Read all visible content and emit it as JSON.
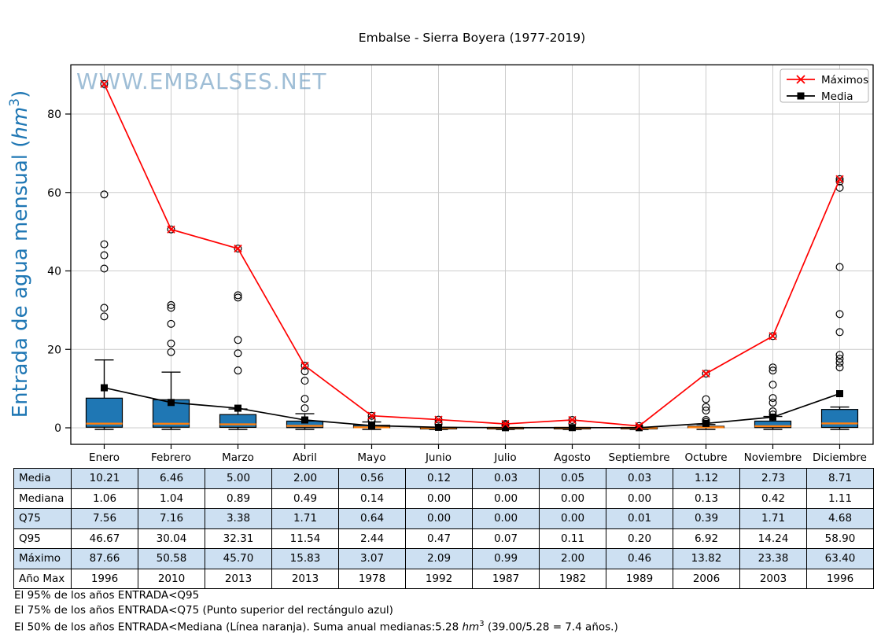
{
  "title": "Embalse - Sierra Boyera (1977-2019)",
  "watermark": "WWW.EMBALSES.NET",
  "legend": {
    "maximos": "Máximos",
    "media": "Media"
  },
  "ylabel": {
    "pre": "Entrada de agua mensual (",
    "unit": "hm",
    "sup": "3",
    "post": ")"
  },
  "footer": {
    "line1": "El 95% de los años ENTRADA<Q95",
    "line2": "El 75% de los años ENTRADA<Q75 (Punto superior del rectángulo azul)",
    "line3_pre": "El 50% de los años ENTRADA<Mediana (Línea naranja). Suma anual medianas:5.28 ",
    "line3_unit": "hm",
    "line3_sup": "3",
    "line3_post": " (39.00/5.28 = 7.4 años.)"
  },
  "table": {
    "rows": [
      {
        "label": "Media",
        "values": [
          "10.21",
          "6.46",
          "5.00",
          "2.00",
          "0.56",
          "0.12",
          "0.03",
          "0.05",
          "0.03",
          "1.12",
          "2.73",
          "8.71"
        ]
      },
      {
        "label": "Mediana",
        "values": [
          "1.06",
          "1.04",
          "0.89",
          "0.49",
          "0.14",
          "0.00",
          "0.00",
          "0.00",
          "0.00",
          "0.13",
          "0.42",
          "1.11"
        ]
      },
      {
        "label": "Q75",
        "values": [
          "7.56",
          "7.16",
          "3.38",
          "1.71",
          "0.64",
          "0.00",
          "0.00",
          "0.00",
          "0.01",
          "0.39",
          "1.71",
          "4.68"
        ]
      },
      {
        "label": "Q95",
        "values": [
          "46.67",
          "30.04",
          "32.31",
          "11.54",
          "2.44",
          "0.47",
          "0.07",
          "0.11",
          "0.20",
          "6.92",
          "14.24",
          "58.90"
        ]
      },
      {
        "label": "Máximo",
        "values": [
          "87.66",
          "50.58",
          "45.70",
          "15.83",
          "3.07",
          "2.09",
          "0.99",
          "2.00",
          "0.46",
          "13.82",
          "23.38",
          "63.40"
        ]
      },
      {
        "label": "Año Max",
        "values": [
          "1996",
          "2010",
          "2013",
          "2013",
          "1978",
          "1992",
          "1987",
          "1982",
          "1989",
          "2006",
          "2003",
          "1996"
        ]
      }
    ]
  },
  "chart_data": {
    "type": "boxplot+line",
    "categories": [
      "Enero",
      "Febrero",
      "Marzo",
      "Abril",
      "Mayo",
      "Junio",
      "Julio",
      "Agosto",
      "Septiembre",
      "Octubre",
      "Noviembre",
      "Diciembre"
    ],
    "yticks": [
      0,
      20,
      40,
      60,
      80
    ],
    "ylim": [
      -4.2,
      92.5
    ],
    "grid": true,
    "legend_position": "upper right",
    "series": [
      {
        "name": "Máximos",
        "color": "#ff0000",
        "marker": "x",
        "values": [
          87.66,
          50.58,
          45.7,
          15.83,
          3.07,
          2.09,
          0.99,
          2.0,
          0.46,
          13.82,
          23.38,
          63.4
        ]
      },
      {
        "name": "Media",
        "color": "#000000",
        "marker": "square",
        "values": [
          10.21,
          6.46,
          5.0,
          2.0,
          0.56,
          0.12,
          0.03,
          0.05,
          0.03,
          1.12,
          2.73,
          8.71
        ]
      }
    ],
    "box": {
      "median": [
        1.06,
        1.04,
        0.89,
        0.49,
        0.14,
        0.0,
        0.0,
        0.0,
        0.0,
        0.13,
        0.42,
        1.11
      ],
      "q3": [
        7.56,
        7.16,
        3.38,
        1.71,
        0.64,
        0.0,
        0.0,
        0.0,
        0.01,
        0.39,
        1.71,
        4.68
      ],
      "q1": [
        0.15,
        0.15,
        0.12,
        0.05,
        0.02,
        0.0,
        0.0,
        0.0,
        0.0,
        0.02,
        0.06,
        0.1
      ],
      "whisker_high": [
        17.3,
        14.2,
        4.8,
        3.6,
        1.5,
        0.0,
        0.0,
        0.0,
        0.0,
        0.85,
        2.9,
        5.3
      ],
      "whisker_low": [
        0.0,
        0.0,
        0.0,
        0.0,
        0.0,
        0.0,
        0.0,
        0.0,
        0.0,
        0.0,
        0.0,
        0.0
      ],
      "outliers": [
        [
          87.66,
          59.5,
          46.8,
          44.0,
          40.6,
          30.6,
          28.4
        ],
        [
          50.58,
          31.3,
          30.6,
          26.5,
          21.5,
          19.3
        ],
        [
          45.7,
          33.8,
          33.2,
          22.4,
          19.0,
          14.6
        ],
        [
          15.83,
          14.4,
          12.0,
          7.4,
          5.0
        ],
        [
          3.07,
          2.2,
          1.8
        ],
        [
          2.09,
          1.3,
          0.9
        ],
        [
          0.99,
          0.7
        ],
        [
          2.0,
          1.1
        ],
        [
          0.46
        ],
        [
          13.82,
          7.3,
          5.3,
          4.4,
          2.0,
          1.5
        ],
        [
          23.38,
          15.4,
          14.6,
          11.0,
          7.6,
          6.4,
          4.2,
          3.4
        ],
        [
          63.4,
          62.8,
          61.2,
          41.0,
          29.0,
          24.4,
          18.6,
          17.6,
          16.6,
          15.4
        ]
      ]
    },
    "colors": {
      "box_fill": "#1f77b4",
      "median_line": "#ff7f0e",
      "grid": "#cccccc",
      "axis": "#000000",
      "ylabel": "#1f77b4",
      "watermark": "#5289b5",
      "table_highlight": "#cde0f2"
    }
  }
}
